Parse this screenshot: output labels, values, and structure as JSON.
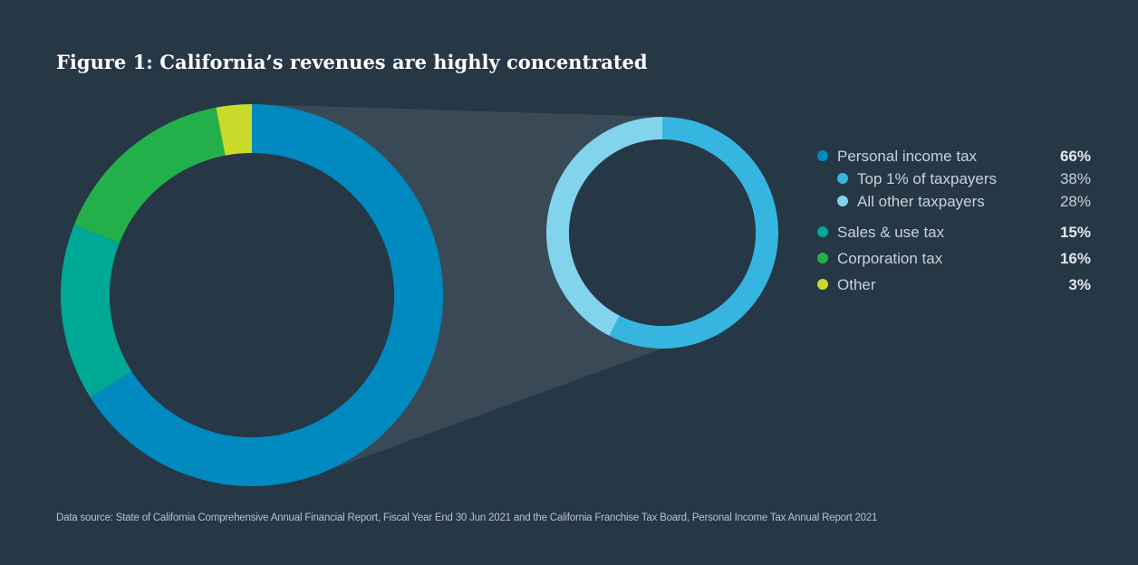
{
  "figure": {
    "title": "Figure 1: California’s revenues are highly concentrated",
    "source": "Data source: State of California Comprehensive Annual Financial Report, Fiscal Year End 30 Jun 2021 and the California Franchise Tax Board, Personal Income Tax Annual Report 2021"
  },
  "colors": {
    "background": "#263746",
    "personal_income_tax": "#008ac0",
    "sales_use_tax": "#00a896",
    "corporation_tax": "#23b04a",
    "other": "#c9da2a",
    "top_1_percent": "#35b5e0",
    "all_other_taxpayers": "#82d4ec",
    "zoom_band": "#3a4956"
  },
  "chart_data": [
    {
      "type": "pie",
      "variant": "donut",
      "categories": [
        "Personal income tax",
        "Sales & use tax",
        "Corporation tax",
        "Other"
      ],
      "values": [
        66,
        15,
        16,
        3
      ],
      "unit": "%"
    },
    {
      "type": "pie",
      "variant": "donut",
      "parent": "Personal income tax",
      "categories": [
        "Top 1% of taxpayers",
        "All other taxpayers"
      ],
      "values": [
        38,
        28
      ],
      "unit": "%"
    }
  ],
  "legend": {
    "placement": "right",
    "items": [
      {
        "label": "Personal income tax",
        "value": "66%",
        "color": "#008ac0",
        "level": 0,
        "bold": true
      },
      {
        "label": "Top 1% of taxpayers",
        "value": "38%",
        "color": "#35b5e0",
        "level": 1,
        "bold": false
      },
      {
        "label": "All other taxpayers",
        "value": "28%",
        "color": "#82d4ec",
        "level": 1,
        "bold": false
      },
      {
        "label": "Sales & use tax",
        "value": "15%",
        "color": "#00a896",
        "level": 0,
        "bold": true
      },
      {
        "label": "Corporation tax",
        "value": "16%",
        "color": "#23b04a",
        "level": 0,
        "bold": true
      },
      {
        "label": "Other",
        "value": "3%",
        "color": "#c9da2a",
        "level": 0,
        "bold": true
      }
    ]
  }
}
